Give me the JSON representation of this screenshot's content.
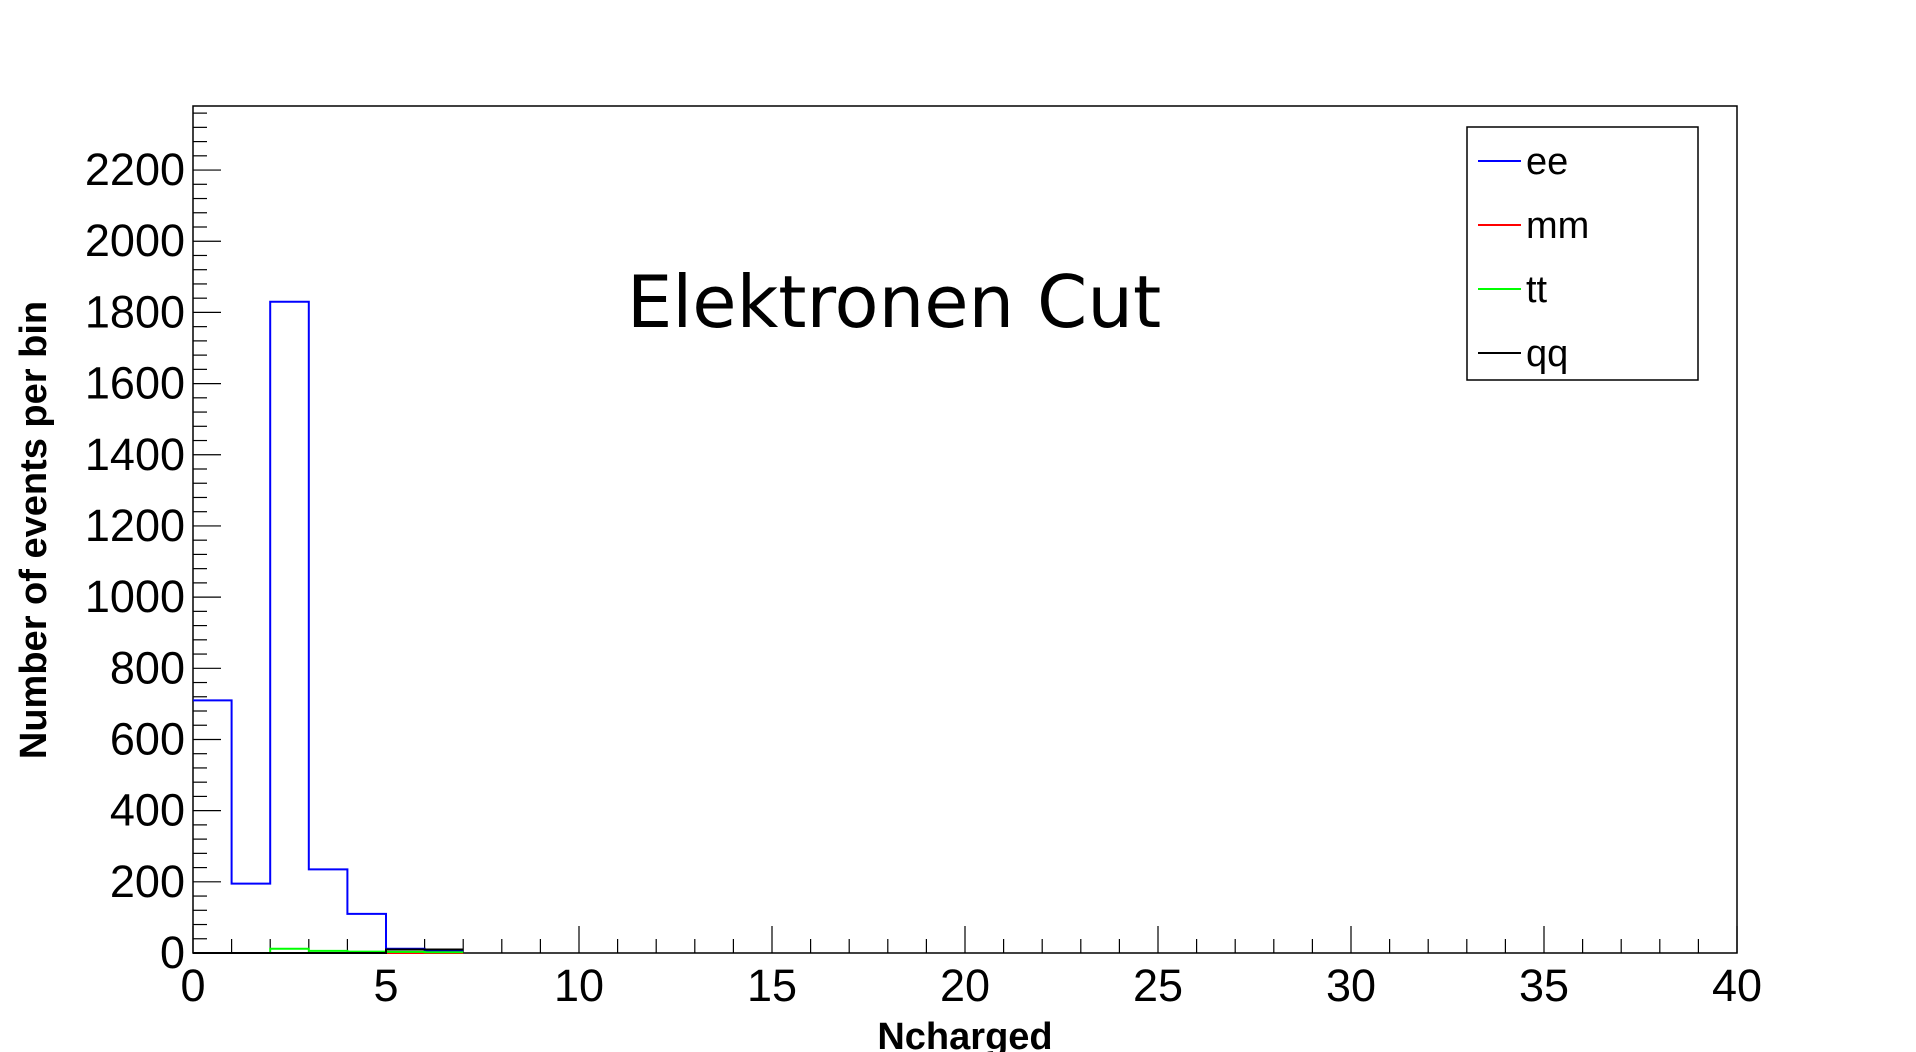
{
  "chart_data": {
    "type": "histogram",
    "title": "Elektronen Cut",
    "xlabel": "Ncharged",
    "ylabel": "Number of events per bin",
    "xlim": [
      0,
      40
    ],
    "ylim": [
      0,
      2380
    ],
    "bin_width": 1,
    "x_ticks": [
      "0",
      "5",
      "10",
      "15",
      "20",
      "25",
      "30",
      "35",
      "40"
    ],
    "y_ticks": [
      "0",
      "200",
      "400",
      "600",
      "800",
      "1000",
      "1200",
      "1400",
      "1600",
      "1800",
      "2000",
      "2200"
    ],
    "grid": false,
    "legend_position": "top-right",
    "series": [
      {
        "name": "ee",
        "color": "#0000ff",
        "bin_edges": [
          0,
          1,
          2,
          3,
          4,
          5,
          6,
          7
        ],
        "values": [
          710,
          195,
          1830,
          235,
          110,
          12,
          5
        ]
      },
      {
        "name": "mm",
        "color": "#ff0000",
        "bin_edges": [
          0,
          1,
          2,
          3,
          4,
          5,
          6,
          7
        ],
        "values": [
          0,
          0,
          0,
          0,
          0,
          0,
          0
        ]
      },
      {
        "name": "tt",
        "color": "#00ff00",
        "bin_edges": [
          0,
          1,
          2,
          3,
          4,
          5,
          6,
          7
        ],
        "values": [
          0,
          0,
          12,
          6,
          4,
          3,
          2
        ]
      },
      {
        "name": "qq",
        "color": "#000000",
        "bin_edges": [
          0,
          1,
          2,
          3,
          4,
          5,
          6,
          7
        ],
        "values": [
          0,
          0,
          0,
          0,
          0,
          10,
          10
        ]
      }
    ]
  }
}
